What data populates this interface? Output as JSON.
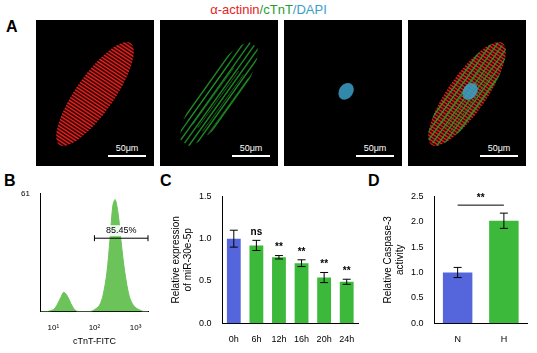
{
  "panel_a": {
    "label": "A",
    "title_parts": [
      {
        "text": "α-actinin",
        "color": "#e8231f"
      },
      {
        "text": "/",
        "color": "#22a02a"
      },
      {
        "text": "cTnT",
        "color": "#22a02a"
      },
      {
        "text": "/",
        "color": "#3aa0c8"
      },
      {
        "text": "DAPI",
        "color": "#3aa0c8"
      }
    ],
    "images": [
      {
        "channels": [
          "α-actinin"
        ],
        "scale_bar": "50μm"
      },
      {
        "channels": [
          "cTnT"
        ],
        "scale_bar": "50μm"
      },
      {
        "channels": [
          "DAPI"
        ],
        "scale_bar": "50μm"
      },
      {
        "channels": [
          "α-actinin",
          "cTnT",
          "DAPI"
        ],
        "scale_bar": "50μm"
      }
    ]
  },
  "chart_data": [
    {
      "label": "B",
      "type": "area",
      "x": [
        5,
        7,
        10,
        12,
        15,
        18,
        22,
        27,
        33,
        40,
        50,
        60,
        80,
        100,
        130,
        160,
        200,
        240,
        280,
        320,
        380,
        450,
        550,
        700,
        900,
        1200,
        1600,
        2000
      ],
      "values": [
        0,
        0,
        1,
        3,
        7,
        10,
        8,
        4,
        1,
        0,
        0,
        0,
        0,
        1,
        3,
        8,
        20,
        38,
        55,
        58,
        50,
        35,
        20,
        8,
        3,
        1,
        0,
        0
      ],
      "color": "#6cc35a",
      "log": "x",
      "xlim": [
        5,
        2000
      ],
      "xticks": [
        {
          "value": 10,
          "label": "10¹"
        },
        {
          "value": 100,
          "label": "10²"
        },
        {
          "value": 1000,
          "label": "10³"
        }
      ],
      "ylim": [
        0,
        61
      ],
      "yticks": [
        61
      ],
      "x_label": "cTnT-FITC",
      "gate": {
        "x": [
          100,
          2000
        ],
        "y": 38,
        "label": "85.45%"
      },
      "grid": false
    },
    {
      "label": "C",
      "type": "bar",
      "categories": [
        "0h",
        "6h",
        "12h",
        "16h",
        "20h",
        "24h"
      ],
      "values": [
        1.0,
        0.92,
        0.78,
        0.71,
        0.54,
        0.49
      ],
      "errors": [
        0.1,
        0.06,
        0.02,
        0.04,
        0.06,
        0.03
      ],
      "colors": [
        "#5566dd",
        "#3cb83a",
        "#3cb83a",
        "#3cb83a",
        "#3cb83a",
        "#3cb83a"
      ],
      "ylim": [
        0,
        1.5
      ],
      "yticks": [
        {
          "value": 0,
          "label": "0.0"
        },
        {
          "value": 0.5,
          "label": "0.5"
        },
        {
          "value": 1,
          "label": "1.0"
        },
        {
          "value": 1.5,
          "label": "1.5"
        }
      ],
      "y_label": [
        "Relative expression",
        "of miR-30e-5p"
      ],
      "annotations": [
        null,
        "ns",
        "**",
        "**",
        "**",
        "**"
      ],
      "grid": false
    },
    {
      "label": "D",
      "type": "bar",
      "categories": [
        "N",
        "H"
      ],
      "values": [
        1.0,
        2.02
      ],
      "errors": [
        0.1,
        0.15
      ],
      "colors": [
        "#5566dd",
        "#3cb83a"
      ],
      "ylim": [
        0,
        2.5
      ],
      "yticks": [
        {
          "value": 0,
          "label": "0.0"
        },
        {
          "value": 0.5,
          "label": "0.5"
        },
        {
          "value": 1,
          "label": "1.0"
        },
        {
          "value": 1.5,
          "label": "1.5"
        },
        {
          "value": 2,
          "label": "2.0"
        },
        {
          "value": 2.5,
          "label": "2.5"
        }
      ],
      "y_label": [
        "Relative Caspase-3",
        "activity"
      ],
      "bracket": {
        "from": "N",
        "to": "H",
        "label": "**"
      },
      "grid": false
    }
  ]
}
